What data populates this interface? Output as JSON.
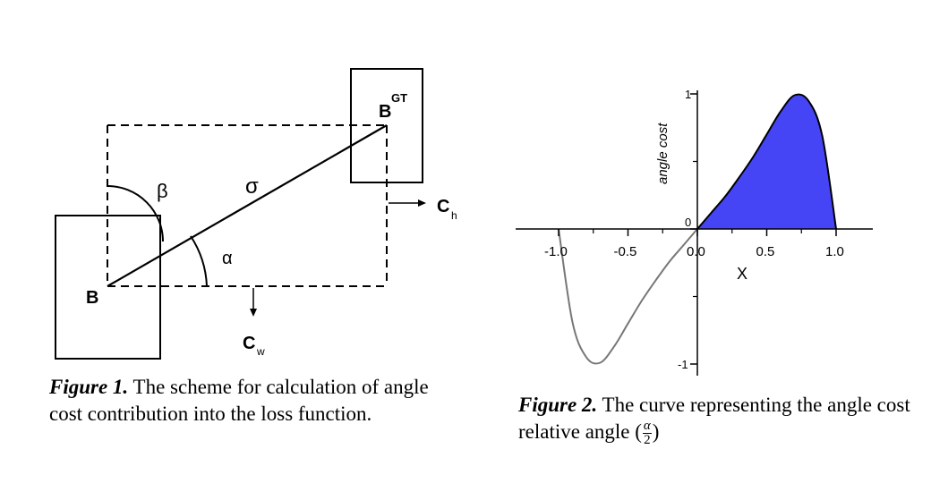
{
  "figure1": {
    "labels": {
      "b": "B",
      "bgt_main": "B",
      "bgt_sup": "GT",
      "beta": "β",
      "sigma": "σ",
      "alpha": "α",
      "ch_main": "C",
      "ch_sub": "h",
      "cw_main": "C",
      "cw_sub": "w"
    },
    "caption": {
      "fig": "Figure 1.",
      "text": " The scheme for calculation of angle cost contribution into the loss function."
    }
  },
  "figure2": {
    "caption": {
      "fig": "Figure 2.",
      "text": " The curve representing the angle cost relative angle (",
      "frac_num": "α",
      "frac_den": "2",
      "close": ")"
    },
    "chart_data": {
      "type": "line",
      "xlabel": "X",
      "ylabel": "angle cost",
      "xlim": [
        -1.0,
        1.0
      ],
      "ylim": [
        -1,
        1
      ],
      "x_ticks": [
        "-1.0",
        "-0.5",
        "0.0",
        "0.5",
        "1.0"
      ],
      "y_ticks": [
        "1",
        "0",
        "-1"
      ],
      "series": [
        {
          "x": [
            -1.0,
            -0.9,
            -0.8,
            -0.7,
            -0.6,
            -0.5,
            -0.4,
            -0.3,
            -0.2,
            -0.1,
            0.0
          ],
          "y": [
            0.0,
            -0.69,
            -0.95,
            -0.99,
            -0.87,
            -0.7,
            -0.53,
            -0.38,
            -0.24,
            -0.12,
            0.0
          ],
          "color": "#777777",
          "fill": false
        },
        {
          "x": [
            0.0,
            0.1,
            0.2,
            0.3,
            0.4,
            0.5,
            0.6,
            0.7,
            0.8,
            0.9,
            1.0
          ],
          "y": [
            0.0,
            0.12,
            0.24,
            0.38,
            0.53,
            0.7,
            0.87,
            0.99,
            0.95,
            0.69,
            0.0
          ],
          "color": "#000000",
          "fill": true,
          "fill_color": "#4545f5"
        }
      ]
    }
  }
}
